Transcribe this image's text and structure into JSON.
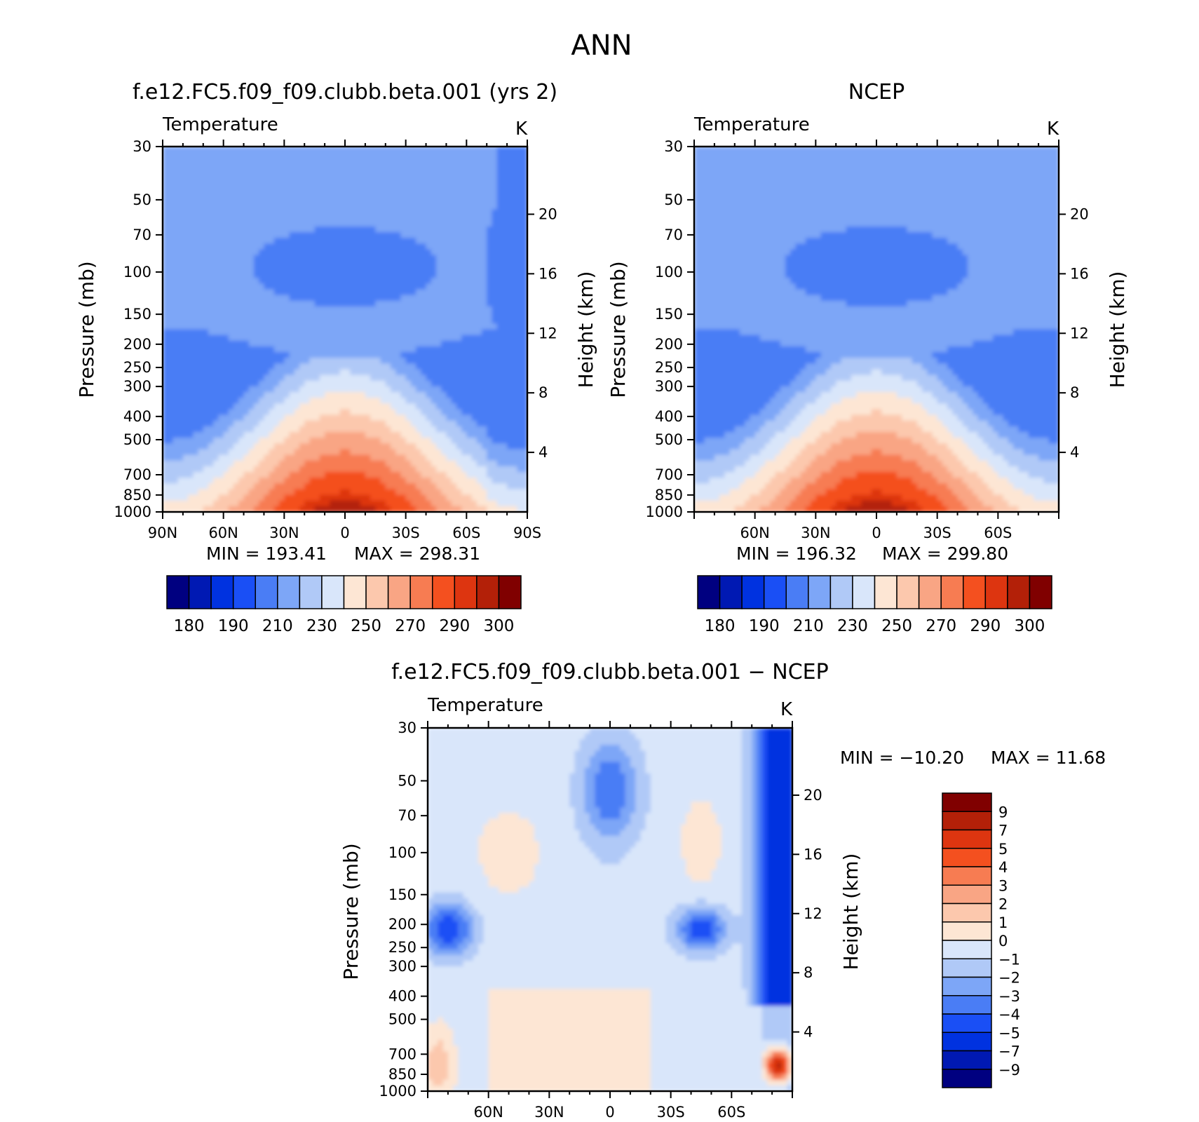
{
  "figure_title": "ANN",
  "colors": {
    "absolute_palette": [
      "#000080",
      "#0019b3",
      "#0032e0",
      "#1a4ff5",
      "#4a7df5",
      "#7da6f7",
      "#b0c9f7",
      "#d9e6fa",
      "#fde6d4",
      "#fcc8ad",
      "#f9a584",
      "#f77c52",
      "#f4501f",
      "#dd3510",
      "#b32008",
      "#800000"
    ],
    "diff_palette": [
      "#000080",
      "#0019b3",
      "#0032e0",
      "#1a4ff5",
      "#4a7df5",
      "#7da6f7",
      "#b0c9f7",
      "#d9e6fa",
      "#fde6d4",
      "#fcc8ad",
      "#f9a584",
      "#f77c52",
      "#f4501f",
      "#dd3510",
      "#b32008",
      "#800000"
    ]
  },
  "chart_data": [
    {
      "type": "heatmap",
      "panel": "model",
      "title": "f.e12.FC5.f09_f09.clubb.beta.001 (yrs 2)",
      "variable": "Temperature",
      "units": "K",
      "xlabel": "",
      "ylabel": "Pressure (mb)",
      "y2label": "Height (km)",
      "x_ticks": [
        "90N",
        "60N",
        "30N",
        "0",
        "30S",
        "60S",
        "90S"
      ],
      "y_ticks": [
        "30",
        "50",
        "70",
        "100",
        "150",
        "200",
        "250",
        "300",
        "400",
        "500",
        "700",
        "850",
        "1000"
      ],
      "y2_ticks": [
        "20",
        "16",
        "12",
        "8",
        "4"
      ],
      "min_label": "MIN = 193.41",
      "max_label": "MAX = 298.31",
      "min": 193.41,
      "max": 298.31,
      "colorbar_labels": [
        "180",
        "190",
        "210",
        "230",
        "250",
        "270",
        "290",
        "300"
      ],
      "levels_approx": [
        180,
        185,
        190,
        200,
        210,
        220,
        230,
        240,
        250,
        260,
        270,
        280,
        290,
        295,
        300
      ],
      "equator_peak_surface": 298,
      "tropopause_min": 193
    },
    {
      "type": "heatmap",
      "panel": "obs",
      "title": "NCEP",
      "variable": "Temperature",
      "units": "K",
      "xlabel": "",
      "ylabel": "Pressure (mb)",
      "y2label": "Height (km)",
      "x_ticks": [
        "60N",
        "30N",
        "0",
        "30S",
        "60S"
      ],
      "y_ticks": [
        "30",
        "50",
        "70",
        "100",
        "150",
        "200",
        "250",
        "300",
        "400",
        "500",
        "700",
        "850",
        "1000"
      ],
      "y2_ticks": [
        "20",
        "16",
        "12",
        "8",
        "4"
      ],
      "min_label": "MIN = 196.32",
      "max_label": "MAX = 299.80",
      "min": 196.32,
      "max": 299.8,
      "colorbar_labels": [
        "180",
        "190",
        "210",
        "230",
        "250",
        "270",
        "290",
        "300"
      ],
      "levels_approx": [
        180,
        185,
        190,
        200,
        210,
        220,
        230,
        240,
        250,
        260,
        270,
        280,
        290,
        295,
        300
      ]
    },
    {
      "type": "heatmap",
      "panel": "difference",
      "title": "f.e12.FC5.f09_f09.clubb.beta.001 − NCEP",
      "variable": "Temperature",
      "units": "K",
      "xlabel": "",
      "ylabel": "Pressure (mb)",
      "y2label": "Height (km)",
      "x_ticks": [
        "60N",
        "30N",
        "0",
        "30S",
        "60S"
      ],
      "y_ticks": [
        "30",
        "50",
        "70",
        "100",
        "150",
        "200",
        "250",
        "300",
        "400",
        "500",
        "700",
        "850",
        "1000"
      ],
      "y2_ticks": [
        "20",
        "16",
        "12",
        "8",
        "4"
      ],
      "min_label": "MIN = −10.20",
      "max_label": "MAX =   11.68",
      "min": -10.2,
      "max": 11.68,
      "colorbar_labels": [
        "9",
        "7",
        "5",
        "4",
        "3",
        "2",
        "1",
        "0",
        "−1",
        "−2",
        "−3",
        "−4",
        "−5",
        "−7",
        "−9"
      ],
      "levels": [
        9,
        7,
        5,
        4,
        3,
        2,
        1,
        0,
        -1,
        -2,
        -3,
        -4,
        -5,
        -7,
        -9
      ]
    }
  ]
}
